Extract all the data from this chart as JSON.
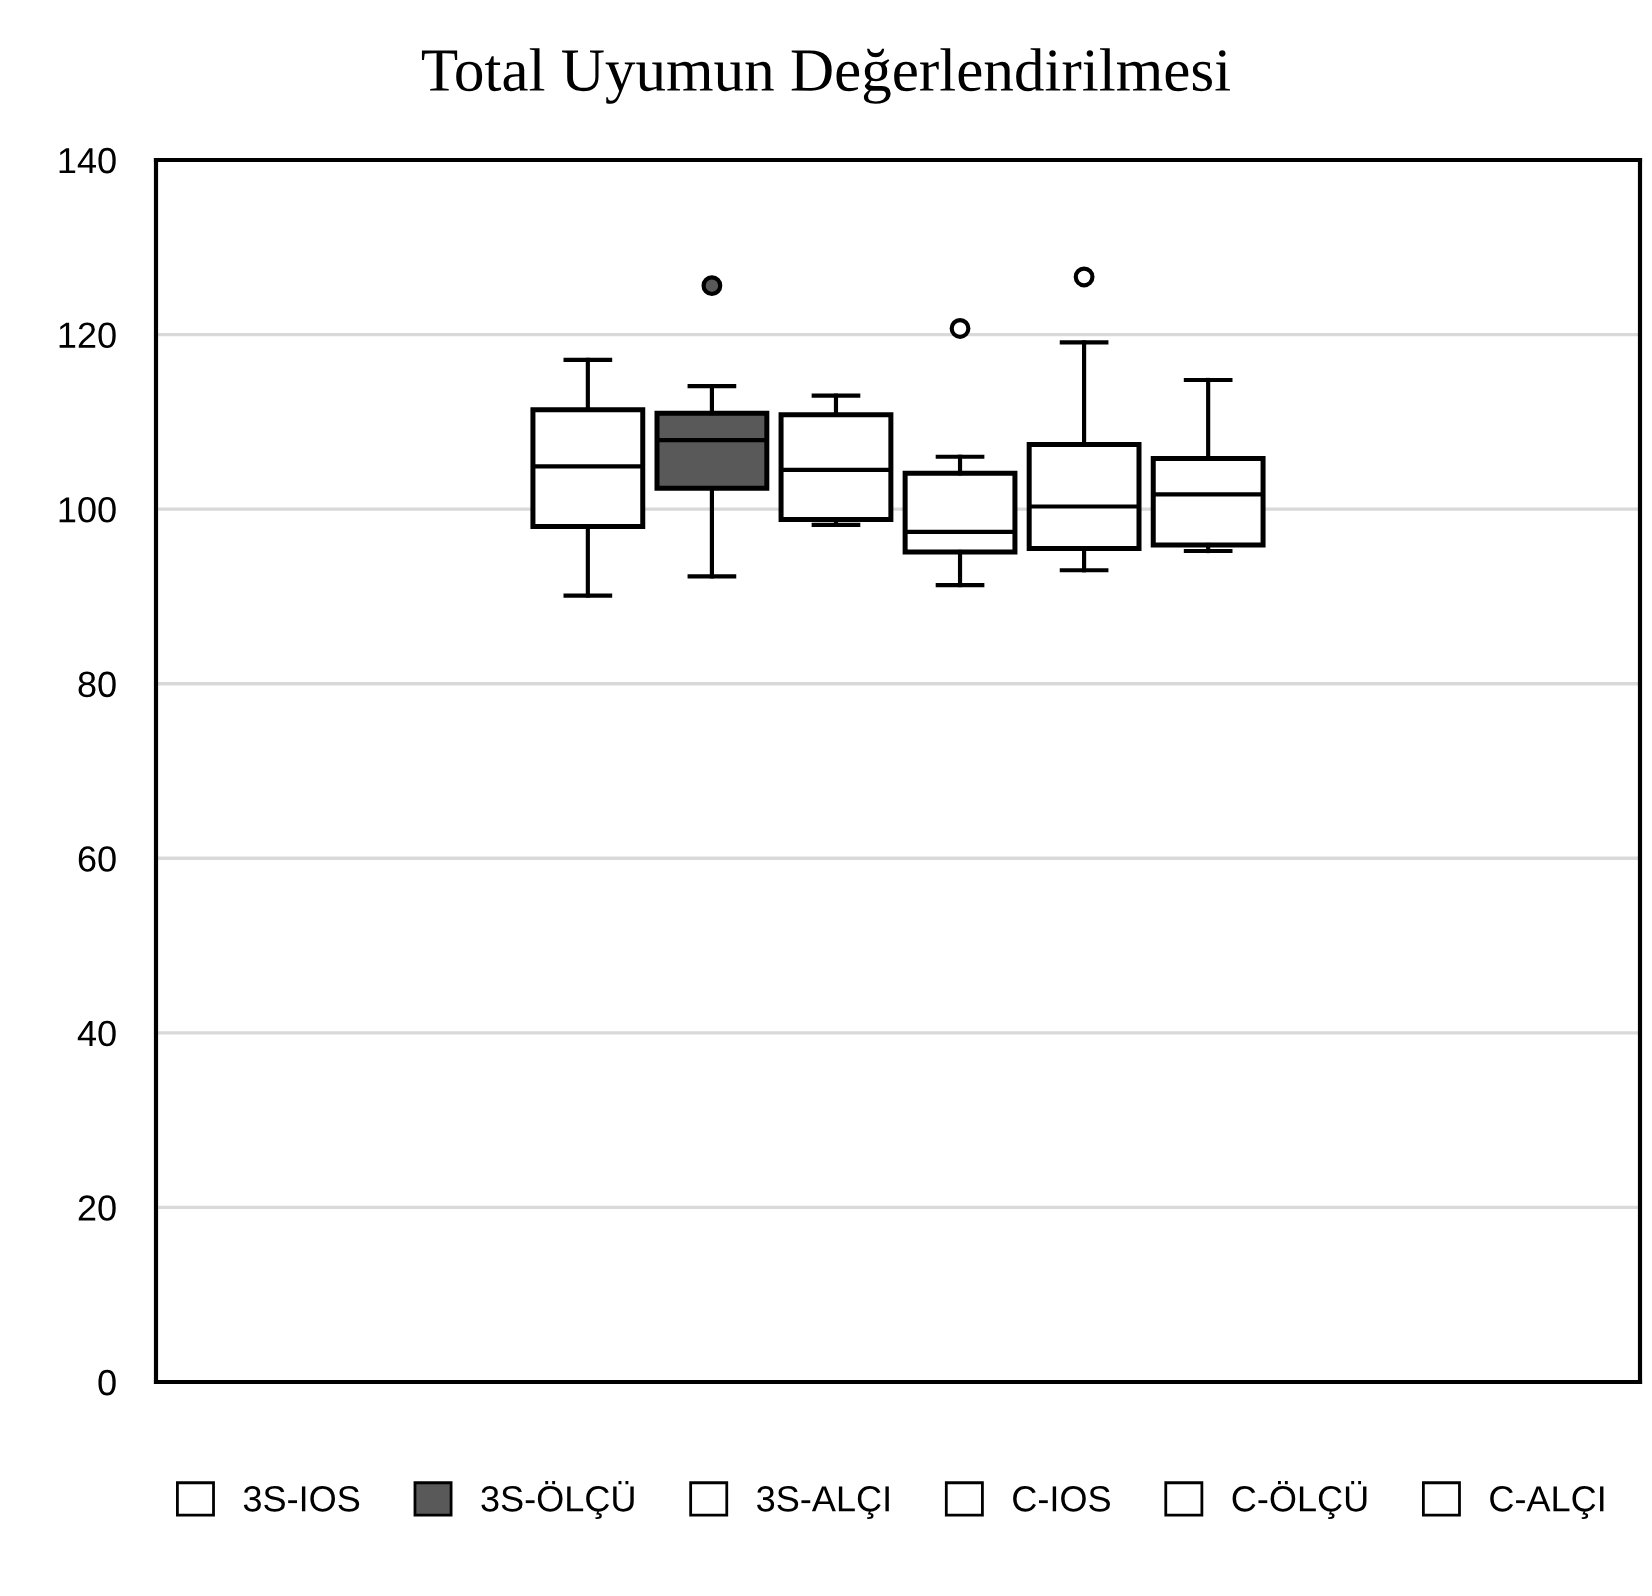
{
  "chart_data": {
    "type": "box",
    "title": "Total Uyumun Değerlendirilmesi",
    "categories": [
      null
    ],
    "ylim": [
      0,
      140
    ],
    "yticks": [
      0,
      20,
      40,
      60,
      80,
      100,
      120,
      140
    ],
    "grid": "y",
    "legend": "bottom",
    "series": [
      {
        "name": "3S-IOS",
        "color": "#ffffff",
        "boxes": [
          {
            "low": 90.1,
            "q1": 98.0,
            "median": 104.9,
            "q3": 111.4,
            "high": 117.1
          }
        ]
      },
      {
        "name": "3S-ÖLÇÜ",
        "color": "#595959",
        "boxes": [
          {
            "low": 92.3,
            "q1": 102.4,
            "median": 107.9,
            "q3": 111.0,
            "high": 114.1,
            "outliers": [
              125.6
            ]
          }
        ]
      },
      {
        "name": "3S-ALÇI",
        "color": "#ffffff",
        "boxes": [
          {
            "low": 98.2,
            "q1": 98.8,
            "median": 104.5,
            "q3": 110.8,
            "high": 113.0
          }
        ]
      },
      {
        "name": "C-IOS",
        "color": "#ffffff",
        "boxes": [
          {
            "low": 91.3,
            "q1": 95.1,
            "median": 97.4,
            "q3": 104.1,
            "high": 106.0,
            "outliers": [
              120.7
            ]
          }
        ]
      },
      {
        "name": "C-ÖLÇÜ",
        "color": "#ffffff",
        "boxes": [
          {
            "low": 93.0,
            "q1": 95.5,
            "median": 100.3,
            "q3": 107.4,
            "high": 119.1,
            "outliers": [
              126.6
            ]
          }
        ]
      },
      {
        "name": "C-ALÇI",
        "color": "#ffffff",
        "boxes": [
          {
            "low": 95.2,
            "q1": 95.9,
            "median": 101.7,
            "q3": 105.8,
            "high": 114.8
          }
        ]
      }
    ]
  }
}
